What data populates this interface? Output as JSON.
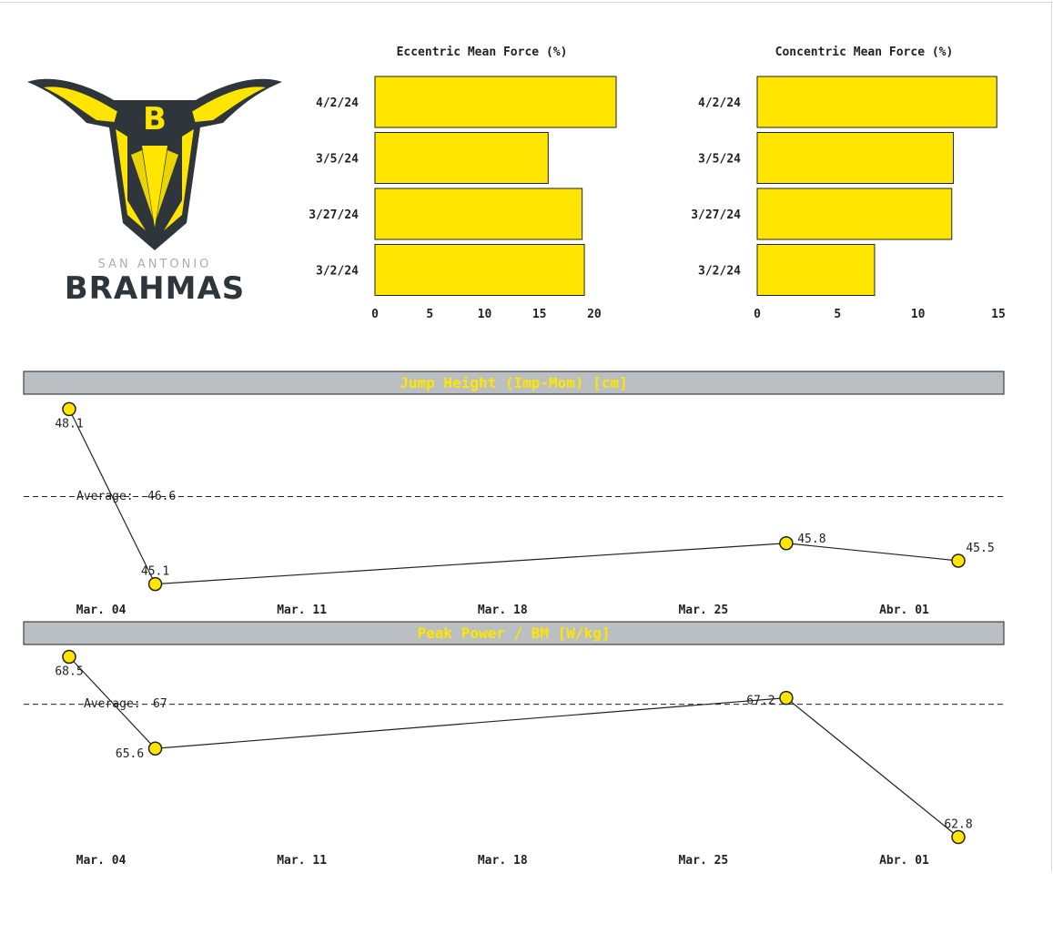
{
  "logo": {
    "line1": "SAN ANTONIO",
    "line2": "BRAHMAS",
    "letter": "B",
    "colors": {
      "dark": "#2f363b",
      "accent": "#ffe500",
      "gray": "#a9adb0"
    }
  },
  "colors": {
    "bar_fill": "#ffe500",
    "bar_stroke": "#222222",
    "header_bg": "#b9bfc2",
    "header_text": "#ffe500",
    "point_fill": "#ffe500"
  },
  "chart_data": [
    {
      "type": "bar",
      "orientation": "horizontal",
      "title": "Eccentric Mean Force (%)",
      "categories": [
        "4/2/24",
        "3/5/24",
        "3/27/24",
        "3/2/24"
      ],
      "values": [
        22,
        15.8,
        18.9,
        19.1
      ],
      "xlim": [
        0,
        22
      ],
      "xticks": [
        0,
        5,
        10,
        15,
        20
      ]
    },
    {
      "type": "bar",
      "orientation": "horizontal",
      "title": "Concentric Mean Force (%)",
      "categories": [
        "4/2/24",
        "3/5/24",
        "3/27/24",
        "3/2/24"
      ],
      "values": [
        14.9,
        12.2,
        12.1,
        7.3
      ],
      "xlim": [
        0,
        15
      ],
      "xticks": [
        0,
        5,
        10,
        15
      ]
    },
    {
      "type": "line",
      "title": "Jump Height (Imp-Mom) [cm]",
      "dates": [
        "2024-03-02",
        "2024-03-05",
        "2024-03-27",
        "2024-04-02"
      ],
      "values": [
        48.1,
        45.1,
        45.8,
        45.5
      ],
      "labels": [
        "48.1",
        "45.1",
        "45.8",
        "45.5"
      ],
      "average": 46.6,
      "average_label": "Average:",
      "average_value": "46.6",
      "ylim": [
        45.0,
        48.2
      ],
      "xticks": [
        {
          "date": "2024-03-04",
          "label": "Mar. 04"
        },
        {
          "date": "2024-03-11",
          "label": "Mar. 11"
        },
        {
          "date": "2024-03-18",
          "label": "Mar. 18"
        },
        {
          "date": "2024-03-25",
          "label": "Mar. 25"
        },
        {
          "date": "2024-04-01",
          "label": "Abr. 01"
        }
      ]
    },
    {
      "type": "line",
      "title": "Peak Power / BM [W/kg]",
      "dates": [
        "2024-03-02",
        "2024-03-05",
        "2024-03-27",
        "2024-04-02"
      ],
      "values": [
        68.5,
        65.6,
        67.2,
        62.8
      ],
      "labels": [
        "68.5",
        "65.6",
        "67.2",
        "62.8"
      ],
      "average": 67,
      "average_label": "Average:",
      "average_value": "67",
      "ylim": [
        62.7,
        68.6
      ],
      "xticks": [
        {
          "date": "2024-03-04",
          "label": "Mar. 04"
        },
        {
          "date": "2024-03-11",
          "label": "Mar. 11"
        },
        {
          "date": "2024-03-18",
          "label": "Mar. 18"
        },
        {
          "date": "2024-03-25",
          "label": "Mar. 25"
        },
        {
          "date": "2024-04-01",
          "label": "Abr. 01"
        }
      ]
    }
  ]
}
